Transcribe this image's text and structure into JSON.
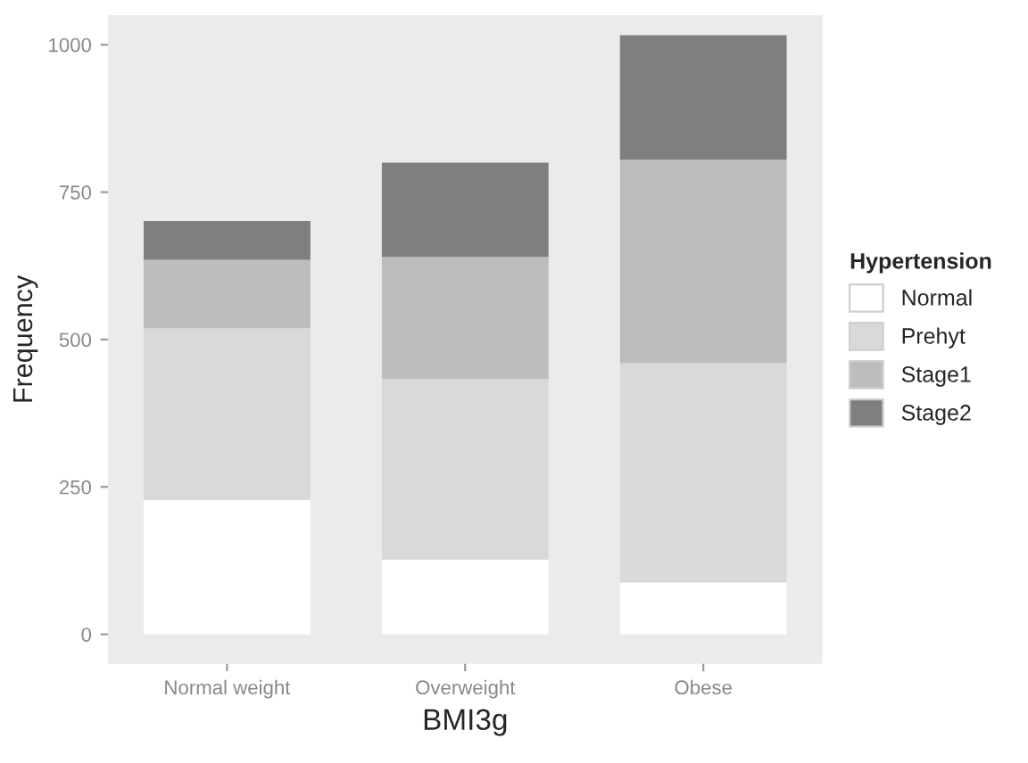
{
  "chart_data": {
    "type": "bar",
    "stacked": true,
    "xlabel": "BMI3g",
    "ylabel": "Frequency",
    "legend_title": "Hypertension",
    "legend": "right",
    "categories": [
      "Normal weight",
      "Overweight",
      "Obese"
    ],
    "series": [
      {
        "name": "Normal",
        "color": "#ffffff",
        "values": [
          228,
          127,
          88
        ]
      },
      {
        "name": "Prehyt",
        "color": "#d9d9d9",
        "values": [
          291,
          306,
          372
        ]
      },
      {
        "name": "Stage1",
        "color": "#bdbdbd",
        "values": [
          116,
          207,
          345
        ]
      },
      {
        "name": "Stage2",
        "color": "#7f7f7f",
        "values": [
          66,
          160,
          211
        ]
      }
    ],
    "ylim": [
      -50,
      1050
    ],
    "yticks": [
      0,
      250,
      500,
      750,
      1000
    ],
    "grid": false
  }
}
